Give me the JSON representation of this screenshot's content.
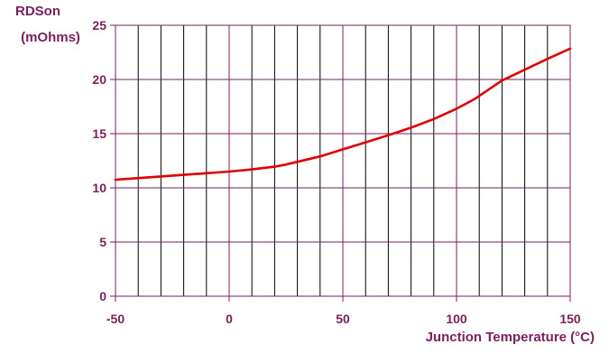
{
  "chart_data": {
    "type": "line",
    "title": "",
    "ylabel_line1": "RDSon",
    "ylabel_line2": "(mOhms)",
    "xlabel": "Junction Temperature (°C)",
    "xlim": [
      -50,
      150
    ],
    "ylim": [
      0,
      25
    ],
    "x_ticks": [
      -50,
      0,
      50,
      100,
      150
    ],
    "y_ticks": [
      0,
      5,
      10,
      15,
      20,
      25
    ],
    "x_minor_step": 10,
    "grid": true,
    "series": [
      {
        "color": "#e00000",
        "x": [
          -50,
          -40,
          -30,
          -20,
          -10,
          0,
          10,
          20,
          25,
          30,
          40,
          50,
          60,
          70,
          80,
          90,
          100,
          108,
          120,
          130,
          140,
          150
        ],
        "y": [
          10.75,
          10.9,
          11.05,
          11.2,
          11.35,
          11.5,
          11.7,
          11.95,
          12.15,
          12.4,
          12.9,
          13.55,
          14.2,
          14.85,
          15.55,
          16.35,
          17.3,
          18.2,
          19.9,
          20.9,
          21.9,
          22.85
        ]
      }
    ]
  },
  "colors": {
    "grid_major": "#7a1f5c",
    "grid_minor": "#000000",
    "text": "#7a1f5c",
    "line": "#e00000"
  }
}
